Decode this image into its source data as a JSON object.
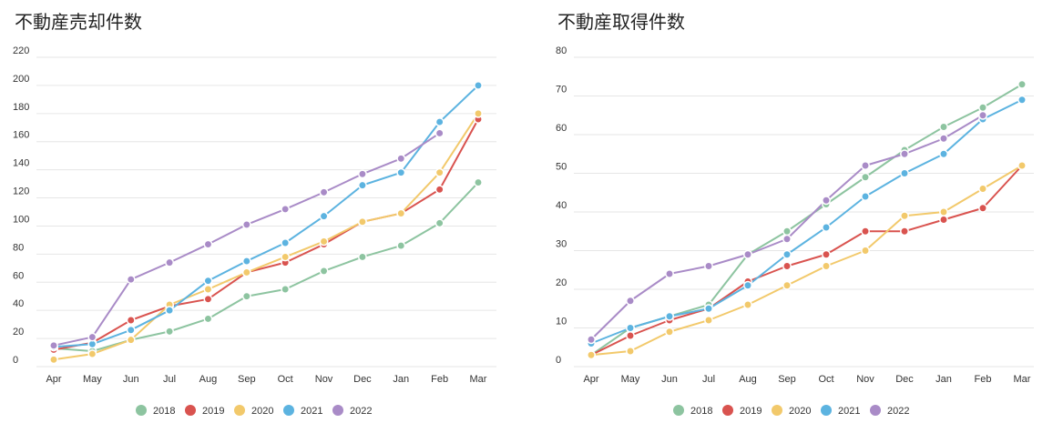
{
  "chart_data": [
    {
      "type": "line",
      "title": "不動産売却件数",
      "categories": [
        "Apr",
        "May",
        "Jun",
        "Jul",
        "Aug",
        "Sep",
        "Oct",
        "Nov",
        "Dec",
        "Jan",
        "Feb",
        "Mar"
      ],
      "yticks": [
        0,
        20,
        40,
        60,
        80,
        100,
        120,
        140,
        160,
        180,
        200,
        220
      ],
      "ylim": [
        0,
        220
      ],
      "grid": true,
      "legend_position": "bottom",
      "series": [
        {
          "name": "2018",
          "color": "#8dc4a0",
          "values": [
            13,
            11,
            19,
            25,
            34,
            50,
            55,
            68,
            78,
            86,
            102,
            131
          ]
        },
        {
          "name": "2019",
          "color": "#d9534f",
          "values": [
            12,
            17,
            33,
            43,
            48,
            67,
            74,
            87,
            103,
            109,
            126,
            176
          ]
        },
        {
          "name": "2020",
          "color": "#f2c96b",
          "values": [
            5,
            9,
            19,
            44,
            55,
            67,
            78,
            89,
            103,
            109,
            138,
            180
          ]
        },
        {
          "name": "2021",
          "color": "#5cb3e0",
          "values": [
            14,
            16,
            26,
            40,
            61,
            75,
            88,
            107,
            129,
            138,
            174,
            200
          ]
        },
        {
          "name": "2022",
          "color": "#a98bc7",
          "values": [
            15,
            21,
            62,
            74,
            87,
            101,
            112,
            124,
            137,
            148,
            166,
            null
          ]
        }
      ]
    },
    {
      "type": "line",
      "title": "不動産取得件数",
      "categories": [
        "Apr",
        "May",
        "Jun",
        "Jul",
        "Aug",
        "Sep",
        "Oct",
        "Nov",
        "Dec",
        "Jan",
        "Feb",
        "Mar"
      ],
      "yticks": [
        0,
        10,
        20,
        30,
        40,
        50,
        60,
        70,
        80
      ],
      "ylim": [
        0,
        80
      ],
      "grid": true,
      "legend_position": "bottom",
      "series": [
        {
          "name": "2018",
          "color": "#8dc4a0",
          "values": [
            3,
            10,
            13,
            16,
            29,
            35,
            42,
            49,
            56,
            62,
            67,
            73
          ]
        },
        {
          "name": "2019",
          "color": "#d9534f",
          "values": [
            3,
            8,
            12,
            15,
            22,
            26,
            29,
            35,
            35,
            38,
            41,
            52
          ]
        },
        {
          "name": "2020",
          "color": "#f2c96b",
          "values": [
            3,
            4,
            9,
            12,
            16,
            21,
            26,
            30,
            39,
            40,
            46,
            52
          ]
        },
        {
          "name": "2021",
          "color": "#5cb3e0",
          "values": [
            6,
            10,
            13,
            15,
            21,
            29,
            36,
            44,
            50,
            55,
            64,
            69
          ]
        },
        {
          "name": "2022",
          "color": "#a98bc7",
          "values": [
            7,
            17,
            24,
            26,
            29,
            33,
            43,
            52,
            55,
            59,
            65,
            null
          ]
        }
      ]
    }
  ]
}
